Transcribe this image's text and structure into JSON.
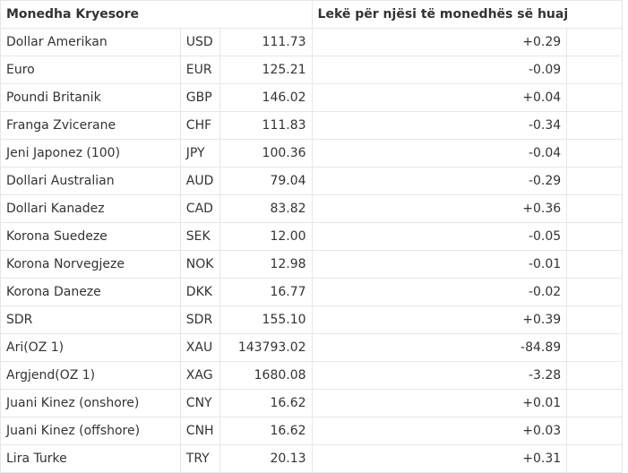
{
  "table": {
    "header_main": "Monedha Kryesore",
    "header_rate": "Lekë për njësi të monedhës së huaj",
    "rows": [
      {
        "name": "Dollar Amerikan",
        "code": "USD",
        "rate": "111.73",
        "change": "+0.29"
      },
      {
        "name": "Euro",
        "code": "EUR",
        "rate": "125.21",
        "change": "-0.09"
      },
      {
        "name": "Poundi Britanik",
        "code": "GBP",
        "rate": "146.02",
        "change": "+0.04"
      },
      {
        "name": "Franga Zvicerane",
        "code": "CHF",
        "rate": "111.83",
        "change": "-0.34"
      },
      {
        "name": "Jeni Japonez (100)",
        "code": "JPY",
        "rate": "100.36",
        "change": "-0.04"
      },
      {
        "name": "Dollari Australian",
        "code": "AUD",
        "rate": "79.04",
        "change": "-0.29"
      },
      {
        "name": "Dollari Kanadez",
        "code": "CAD",
        "rate": "83.82",
        "change": "+0.36"
      },
      {
        "name": "Korona Suedeze",
        "code": "SEK",
        "rate": "12.00",
        "change": "-0.05"
      },
      {
        "name": "Korona Norvegjeze",
        "code": "NOK",
        "rate": "12.98",
        "change": "-0.01"
      },
      {
        "name": "Korona Daneze",
        "code": "DKK",
        "rate": "16.77",
        "change": "-0.02"
      },
      {
        "name": "SDR",
        "code": "SDR",
        "rate": "155.10",
        "change": "+0.39"
      },
      {
        "name": "Ari(OZ 1)",
        "code": "XAU",
        "rate": "143793.02",
        "change": "-84.89"
      },
      {
        "name": "Argjend(OZ 1)",
        "code": "XAG",
        "rate": "1680.08",
        "change": "-3.28"
      },
      {
        "name": "Juani Kinez (onshore)",
        "code": "CNY",
        "rate": "16.62",
        "change": "+0.01"
      },
      {
        "name": "Juani Kinez (offshore)",
        "code": "CNH",
        "rate": "16.62",
        "change": "+0.03"
      },
      {
        "name": "Lira Turke",
        "code": "TRY",
        "rate": "20.13",
        "change": "+0.31"
      }
    ]
  }
}
